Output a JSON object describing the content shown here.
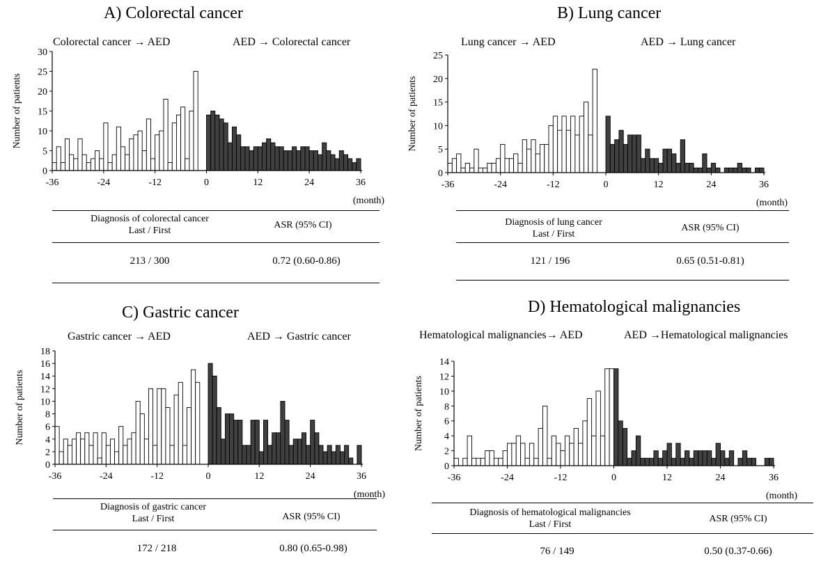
{
  "chart_data": [
    {
      "type": "bar",
      "title": "A) Colorectal cancer",
      "left_label": "Colorectal cancer → AED",
      "right_label": "AED → Colorectal cancer",
      "ylabel": "Number of patients",
      "xlabel": "(month)",
      "ylim": [
        0,
        30
      ],
      "yticks": [
        0,
        5,
        10,
        15,
        20,
        25,
        30
      ],
      "xticks": [
        -36,
        -24,
        -12,
        0,
        12,
        24,
        36
      ],
      "grid": false,
      "x": [
        -36,
        -35,
        -34,
        -33,
        -32,
        -31,
        -30,
        -29,
        -28,
        -27,
        -26,
        -25,
        -24,
        -23,
        -22,
        -21,
        -20,
        -19,
        -18,
        -17,
        -16,
        -15,
        -14,
        -13,
        -12,
        -11,
        -10,
        -9,
        -8,
        -7,
        -6,
        -5,
        -4,
        -3,
        -2,
        -1,
        0,
        1,
        2,
        3,
        4,
        5,
        6,
        7,
        8,
        9,
        10,
        11,
        12,
        13,
        14,
        15,
        16,
        17,
        18,
        19,
        20,
        21,
        22,
        23,
        24,
        25,
        26,
        27,
        28,
        29,
        30,
        31,
        32,
        33,
        34,
        35
      ],
      "series": [
        {
          "values": [
            2,
            6,
            2,
            8,
            4,
            3,
            8,
            4,
            2,
            3,
            5,
            3,
            12,
            2,
            4,
            11,
            6,
            4,
            8,
            9,
            10,
            5,
            13,
            3,
            9,
            10,
            18,
            2,
            12,
            14,
            16,
            3,
            15,
            25,
            0,
            0,
            0,
            0,
            0,
            0,
            0,
            0,
            0,
            0,
            0,
            0,
            0,
            0,
            0,
            0,
            0,
            0,
            0,
            0,
            0,
            0,
            0,
            0,
            0,
            0,
            0,
            0,
            0,
            0,
            0,
            0,
            0,
            0,
            0,
            0,
            0,
            0
          ]
        },
        {
          "values": [
            0,
            0,
            0,
            0,
            0,
            0,
            0,
            0,
            0,
            0,
            0,
            0,
            0,
            0,
            0,
            0,
            0,
            0,
            0,
            0,
            0,
            0,
            0,
            0,
            0,
            0,
            0,
            0,
            0,
            0,
            0,
            0,
            0,
            0,
            0,
            0,
            14,
            15,
            14,
            13,
            12,
            7,
            11,
            9,
            6,
            6,
            5,
            6,
            6,
            7,
            8,
            7,
            6,
            6,
            5,
            5,
            6,
            5,
            6,
            6,
            5,
            5,
            4,
            7,
            5,
            4,
            3,
            5,
            4,
            3,
            2,
            3
          ]
        }
      ],
      "table": {
        "col1_line1": "Diagnosis of colorectal cancer",
        "col1_line2": "Last / First",
        "col2": "ASR (95% CI)",
        "val1": "213 / 300",
        "val2": "0.72 (0.60-0.86)"
      }
    },
    {
      "type": "bar",
      "title": "B) Lung cancer",
      "left_label": "Lung cancer → AED",
      "right_label": "AED → Lung cancer",
      "ylabel": "Number of patients",
      "xlabel": "(month)",
      "ylim": [
        0,
        25
      ],
      "yticks": [
        0,
        5,
        10,
        15,
        20,
        25
      ],
      "xticks": [
        -36,
        -24,
        -12,
        0,
        12,
        24,
        36
      ],
      "grid": false,
      "x": [
        -36,
        -35,
        -34,
        -33,
        -32,
        -31,
        -30,
        -29,
        -28,
        -27,
        -26,
        -25,
        -24,
        -23,
        -22,
        -21,
        -20,
        -19,
        -18,
        -17,
        -16,
        -15,
        -14,
        -13,
        -12,
        -11,
        -10,
        -9,
        -8,
        -7,
        -6,
        -5,
        -4,
        -3,
        -2,
        -1,
        0,
        1,
        2,
        3,
        4,
        5,
        6,
        7,
        8,
        9,
        10,
        11,
        12,
        13,
        14,
        15,
        16,
        17,
        18,
        19,
        20,
        21,
        22,
        23,
        24,
        25,
        26,
        27,
        28,
        29,
        30,
        31,
        32,
        33,
        34,
        35
      ],
      "series": [
        {
          "values": [
            2,
            3,
            4,
            1,
            2,
            1,
            5,
            1,
            1,
            2,
            2,
            3,
            6,
            3,
            3,
            4,
            2,
            7,
            5,
            7,
            4,
            6,
            6,
            10,
            12,
            9,
            12,
            9,
            12,
            8,
            12,
            15,
            8,
            22,
            0,
            0,
            0,
            0,
            0,
            0,
            0,
            0,
            0,
            0,
            0,
            0,
            0,
            0,
            0,
            0,
            0,
            0,
            0,
            0,
            0,
            0,
            0,
            0,
            0,
            0,
            0,
            0,
            0,
            0,
            0,
            0,
            0,
            0,
            0,
            0,
            0,
            0
          ]
        },
        {
          "values": [
            0,
            0,
            0,
            0,
            0,
            0,
            0,
            0,
            0,
            0,
            0,
            0,
            0,
            0,
            0,
            0,
            0,
            0,
            0,
            0,
            0,
            0,
            0,
            0,
            0,
            0,
            0,
            0,
            0,
            0,
            0,
            0,
            0,
            0,
            0,
            0,
            12,
            6,
            7,
            9,
            6,
            8,
            8,
            8,
            3,
            5,
            3,
            3,
            2,
            5,
            5,
            4,
            2,
            7,
            2,
            2,
            1,
            1,
            4,
            1,
            2,
            1,
            0,
            1,
            1,
            1,
            2,
            1,
            1,
            0,
            1,
            1
          ]
        }
      ],
      "table": {
        "col1_line1": "Diagnosis of lung cancer",
        "col1_line2": "Last / First",
        "col2": "ASR (95% CI)",
        "val1": "121 / 196",
        "val2": "0.65 (0.51-0.81)"
      }
    },
    {
      "type": "bar",
      "title": "C) Gastric cancer",
      "left_label": "Gastric cancer → AED",
      "right_label": "AED → Gastric cancer",
      "ylabel": "Number of patients",
      "xlabel": "(month)",
      "ylim": [
        0,
        18
      ],
      "yticks": [
        0,
        2,
        4,
        6,
        8,
        10,
        12,
        14,
        16,
        18
      ],
      "xticks": [
        -36,
        -24,
        -12,
        0,
        12,
        24,
        36
      ],
      "grid": false,
      "x": [
        -36,
        -35,
        -34,
        -33,
        -32,
        -31,
        -30,
        -29,
        -28,
        -27,
        -26,
        -25,
        -24,
        -23,
        -22,
        -21,
        -20,
        -19,
        -18,
        -17,
        -16,
        -15,
        -14,
        -13,
        -12,
        -11,
        -10,
        -9,
        -8,
        -7,
        -6,
        -5,
        -4,
        -3,
        -2,
        -1,
        0,
        1,
        2,
        3,
        4,
        5,
        6,
        7,
        8,
        9,
        10,
        11,
        12,
        13,
        14,
        15,
        16,
        17,
        18,
        19,
        20,
        21,
        22,
        23,
        24,
        25,
        26,
        27,
        28,
        29,
        30,
        31,
        32,
        33,
        34,
        35
      ],
      "series": [
        {
          "values": [
            6,
            2,
            4,
            3,
            4,
            5,
            4,
            5,
            3,
            5,
            1,
            5,
            3,
            4,
            2,
            6,
            3,
            4,
            5,
            10,
            8,
            4,
            12,
            3,
            12,
            12,
            9,
            3,
            11,
            13,
            3,
            9,
            15,
            13,
            0,
            0,
            0,
            0,
            0,
            0,
            0,
            0,
            0,
            0,
            0,
            0,
            0,
            0,
            0,
            0,
            0,
            0,
            0,
            0,
            0,
            0,
            0,
            0,
            0,
            0,
            0,
            0,
            0,
            0,
            0,
            0,
            0,
            0,
            0,
            0,
            0,
            0
          ]
        },
        {
          "values": [
            0,
            0,
            0,
            0,
            0,
            0,
            0,
            0,
            0,
            0,
            0,
            0,
            0,
            0,
            0,
            0,
            0,
            0,
            0,
            0,
            0,
            0,
            0,
            0,
            0,
            0,
            0,
            0,
            0,
            0,
            0,
            0,
            0,
            0,
            0,
            0,
            16,
            14,
            9,
            4,
            8,
            8,
            7,
            7,
            3,
            3,
            7,
            7,
            2,
            7,
            3,
            5,
            5,
            10,
            7,
            3,
            4,
            4,
            5,
            3,
            7,
            5,
            3,
            2,
            3,
            2,
            3,
            2,
            3,
            1,
            0,
            3
          ]
        }
      ],
      "table": {
        "col1_line1": "Diagnosis of gastric cancer",
        "col1_line2": "Last / First",
        "col2": "ASR (95% CI)",
        "val1": "172 / 218",
        "val2": "0.80 (0.65-0.98)"
      }
    },
    {
      "type": "bar",
      "title": "D) Hematological malignancies",
      "left_label": "Hematological malignancies→ AED",
      "right_label": "AED →Hematological malignancies",
      "ylabel": "Number of patients",
      "xlabel": "(month)",
      "ylim": [
        0,
        14
      ],
      "yticks": [
        0,
        2,
        4,
        6,
        8,
        10,
        12,
        14
      ],
      "xticks": [
        -36,
        -24,
        -12,
        0,
        12,
        24,
        36
      ],
      "grid": false,
      "x": [
        -36,
        -35,
        -34,
        -33,
        -32,
        -31,
        -30,
        -29,
        -28,
        -27,
        -26,
        -25,
        -24,
        -23,
        -22,
        -21,
        -20,
        -19,
        -18,
        -17,
        -16,
        -15,
        -14,
        -13,
        -12,
        -11,
        -10,
        -9,
        -8,
        -7,
        -6,
        -5,
        -4,
        -3,
        -2,
        -1,
        0,
        1,
        2,
        3,
        4,
        5,
        6,
        7,
        8,
        9,
        10,
        11,
        12,
        13,
        14,
        15,
        16,
        17,
        18,
        19,
        20,
        21,
        22,
        23,
        24,
        25,
        26,
        27,
        28,
        29,
        30,
        31,
        32,
        33,
        34,
        35
      ],
      "series": [
        {
          "values": [
            1,
            0,
            1,
            4,
            1,
            1,
            1,
            2,
            2,
            1,
            1,
            2,
            3,
            3,
            4,
            3,
            1,
            3,
            1,
            5,
            8,
            1,
            4,
            3,
            2,
            4,
            3,
            5,
            3,
            6,
            9,
            4,
            10,
            4,
            13,
            13,
            0,
            0,
            0,
            0,
            0,
            0,
            0,
            0,
            0,
            0,
            0,
            0,
            0,
            0,
            0,
            0,
            0,
            0,
            0,
            0,
            0,
            0,
            0,
            0,
            0,
            0,
            0,
            0,
            0,
            0,
            0,
            0,
            0,
            0,
            0,
            0
          ]
        },
        {
          "values": [
            0,
            0,
            0,
            0,
            0,
            0,
            0,
            0,
            0,
            0,
            0,
            0,
            0,
            0,
            0,
            0,
            0,
            0,
            0,
            0,
            0,
            0,
            0,
            0,
            0,
            0,
            0,
            0,
            0,
            0,
            0,
            0,
            0,
            0,
            0,
            0,
            13,
            6,
            5,
            1,
            2,
            4,
            1,
            1,
            1,
            2,
            1,
            2,
            3,
            1,
            3,
            1,
            2,
            1,
            2,
            2,
            2,
            2,
            1,
            3,
            2,
            1,
            2,
            0,
            1,
            2,
            1,
            1,
            0,
            0,
            1,
            1
          ]
        }
      ],
      "table": {
        "col1_line1": "Diagnosis of hematological malignancies",
        "col1_line2": "Last / First",
        "col2": "ASR (95% CI)",
        "val1": "76 / 149",
        "val2": "0.50 (0.37-0.66)"
      }
    }
  ],
  "colors": {
    "before_bar_fill": "#ffffff",
    "after_bar_fill": "#404040",
    "bar_stroke": "#000000"
  }
}
